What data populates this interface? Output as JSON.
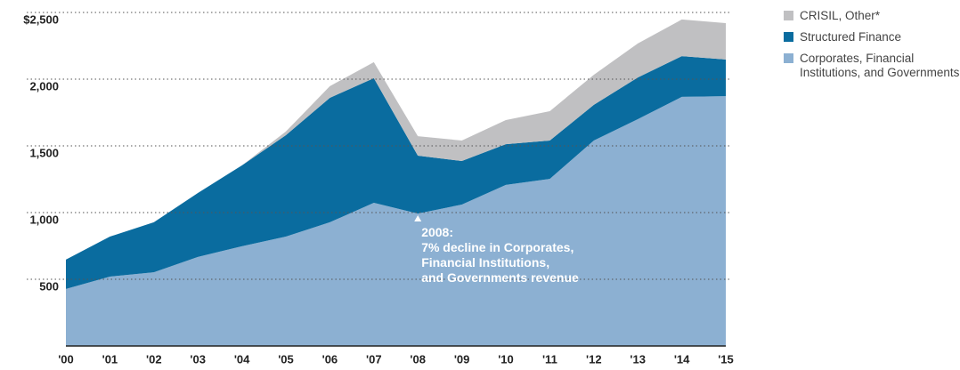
{
  "chart_data": {
    "type": "stacked_area",
    "categories": [
      "'00",
      "'01",
      "'02",
      "'03",
      "'04",
      "'05",
      "'06",
      "'07",
      "'08",
      "'09",
      "'10",
      "'11",
      "'12",
      "'13",
      "'14",
      "'15"
    ],
    "series": [
      {
        "name": "Corporates, Financial Institutions, and Governments",
        "color": "#8cb0d2",
        "values": [
          427,
          520,
          553,
          667,
          747,
          820,
          927,
          1073,
          993,
          1060,
          1207,
          1253,
          1540,
          1700,
          1867,
          1873
        ]
      },
      {
        "name": "Structured Finance",
        "color": "#0a6c9f",
        "values": [
          220,
          300,
          374,
          480,
          606,
          760,
          933,
          934,
          434,
          327,
          306,
          287,
          267,
          313,
          306,
          274
        ]
      },
      {
        "name": "CRISIL, Other*",
        "color": "#c0c0c2",
        "values": [
          0,
          0,
          0,
          0,
          0,
          27,
          87,
          120,
          146,
          153,
          180,
          220,
          226,
          254,
          274,
          273
        ]
      }
    ],
    "ylim": [
      0,
      2500
    ],
    "yticks": [
      {
        "value": 500,
        "label": "500"
      },
      {
        "value": 1000,
        "label": "1,000"
      },
      {
        "value": 1500,
        "label": "1,500"
      },
      {
        "value": 2000,
        "label": "2,000"
      },
      {
        "value": 2500,
        "label": "$2,500"
      }
    ],
    "grid": true,
    "annotation": {
      "category": 8,
      "lines": [
        "2008:",
        "7% decline in Corporates,",
        "Financial Institutions,",
        "and Governments revenue"
      ]
    }
  }
}
